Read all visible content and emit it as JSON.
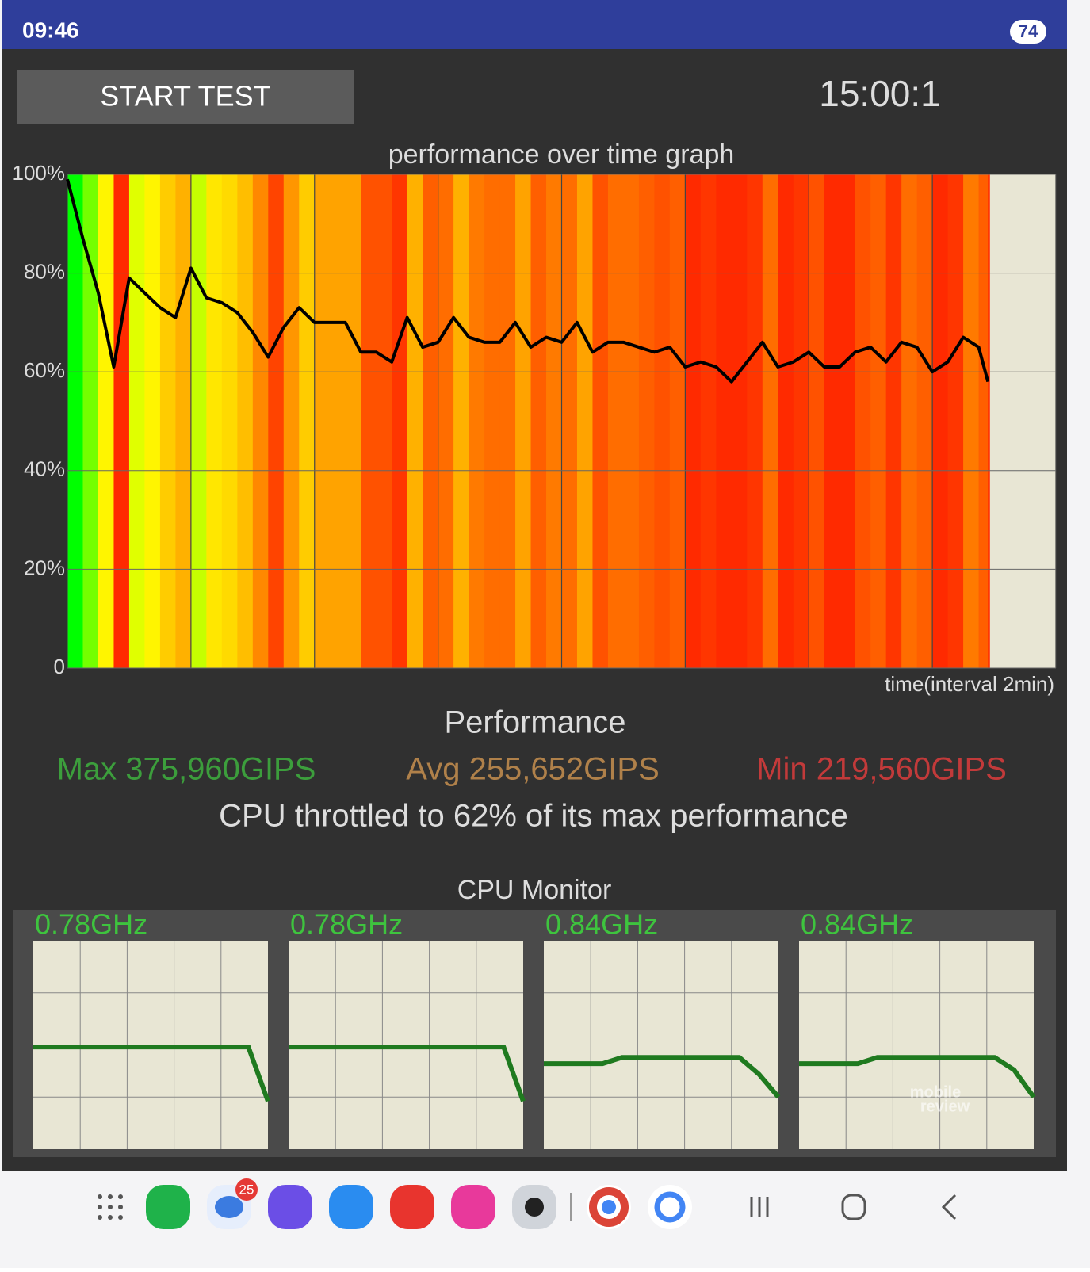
{
  "status_bar": {
    "time": "09:46",
    "battery": "74"
  },
  "start_button": "START TEST",
  "timer": "15:00:1",
  "chart_data": {
    "type": "line",
    "title": "performance over time graph",
    "x_label": "time(interval 2min)",
    "x": [
      0,
      0.25,
      0.5,
      0.75,
      1,
      1.25,
      1.5,
      1.75,
      2,
      2.25,
      2.5,
      2.75,
      3,
      3.25,
      3.5,
      3.75,
      4,
      4.25,
      4.5,
      4.75,
      5,
      5.25,
      5.5,
      5.75,
      6,
      6.25,
      6.5,
      6.75,
      7,
      7.25,
      7.5,
      7.75,
      8,
      8.25,
      8.5,
      8.75,
      9,
      9.25,
      9.5,
      9.75,
      10,
      10.25,
      10.5,
      10.75,
      11,
      11.25,
      11.5,
      11.75,
      12,
      12.25,
      12.5,
      12.75,
      13,
      13.25,
      13.5,
      13.75,
      14,
      14.25,
      14.5,
      14.75,
      14.9
    ],
    "values": [
      99,
      87,
      76,
      61,
      79,
      76,
      73,
      71,
      81,
      75,
      74,
      72,
      68,
      63,
      69,
      73,
      70,
      70,
      70,
      64,
      64,
      62,
      71,
      65,
      66,
      71,
      67,
      66,
      66,
      70,
      65,
      67,
      66,
      70,
      64,
      66,
      66,
      65,
      64,
      65,
      61,
      62,
      61,
      58,
      62,
      66,
      61,
      62,
      64,
      61,
      61,
      64,
      65,
      62,
      66,
      65,
      60,
      62,
      67,
      65,
      58
    ],
    "color": "#000000",
    "xlim": [
      0,
      16
    ],
    "xticks": [
      0,
      2,
      4,
      6,
      8,
      10,
      12,
      14,
      16
    ],
    "ylim": [
      0,
      100
    ],
    "yticks": [
      0,
      {
        "value": 20,
        "label": "20%"
      },
      {
        "value": 40,
        "label": "40%"
      },
      {
        "value": 60,
        "label": "60%"
      },
      {
        "value": 80,
        "label": "80%"
      },
      {
        "value": 100,
        "label": "100%"
      }
    ],
    "grid": true
  },
  "performance": {
    "title": "Performance",
    "max": "Max 375,960GIPS",
    "avg": "Avg 255,652GIPS",
    "min": "Min 219,560GIPS",
    "summary": "CPU throttled to 62% of its max performance"
  },
  "cpu_monitor": {
    "title": "CPU Monitor",
    "ylim": [
      0,
      100
    ],
    "color": "#1f7a1f",
    "cores": [
      {
        "label": "0.78GHz",
        "values": [
          49,
          49,
          49,
          49,
          49,
          49,
          49,
          49,
          49,
          49,
          49,
          49,
          23
        ]
      },
      {
        "label": "0.78GHz",
        "values": [
          49,
          49,
          49,
          49,
          49,
          49,
          49,
          49,
          49,
          49,
          49,
          49,
          23
        ]
      },
      {
        "label": "0.84GHz",
        "values": [
          41,
          41,
          41,
          41,
          44,
          44,
          44,
          44,
          44,
          44,
          44,
          36,
          25
        ]
      },
      {
        "label": "0.84GHz",
        "values": [
          41,
          41,
          41,
          41,
          44,
          44,
          44,
          44,
          44,
          44,
          44,
          38,
          25
        ]
      }
    ]
  },
  "watermark": [
    "mobile",
    "review"
  ],
  "dock": {
    "badge": "25"
  }
}
